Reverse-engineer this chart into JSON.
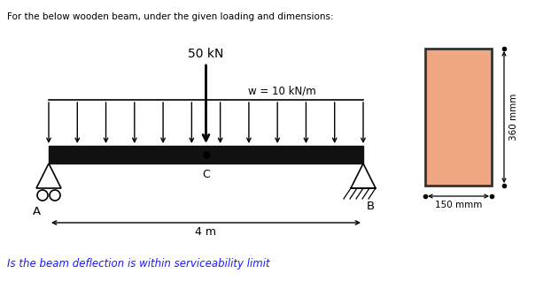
{
  "title": "For the below wooden beam, under the given loading and dimensions:",
  "question": "Is the beam deflection is within serviceability limit",
  "question_color": "#1a1aff",
  "bg_color": "#ffffff",
  "beam_color": "#111111",
  "point_load_label": "50 kN",
  "udl_label": "w = 10 kN/m",
  "span_label": "4 m",
  "C_label": "C",
  "A_label": "A",
  "B_label": "B",
  "rect_fill": "#f0a882",
  "rect_edge": "#333333",
  "dim_150": "150 mmm",
  "dim_360": "360 mmm",
  "n_udl_arrows": 12,
  "figw": 6.22,
  "figh": 3.18
}
